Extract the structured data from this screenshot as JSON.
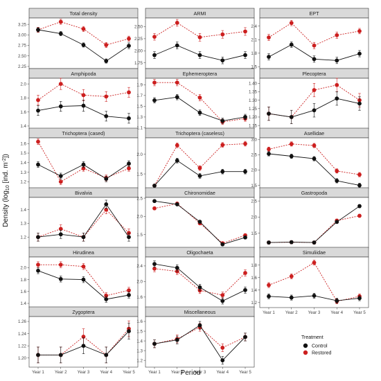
{
  "figure": {
    "xlabel": "Period",
    "ylabel": "Density (log10 [ind. m-2])",
    "legend_title": "Treatment"
  },
  "chart_data": {
    "type": "line",
    "categories": [
      "Year 1",
      "Year 2",
      "Year 3",
      "Year 4",
      "Year 5"
    ],
    "series_names": [
      "Control",
      "Restored"
    ],
    "colors": {
      "Control": "#111111",
      "Restored": "#cc1f1f"
    },
    "legend_position": "bottom-right",
    "panels": [
      {
        "title": "Total density",
        "ylim": [
          2.2,
          3.4
        ],
        "yticks": [
          "2.25",
          "2.50",
          "2.75",
          "3.00",
          "3.25"
        ],
        "control": [
          3.12,
          3.03,
          2.76,
          2.38,
          2.74
        ],
        "restored": [
          3.12,
          3.31,
          3.14,
          2.76,
          2.91
        ],
        "control_err": [
          0.05,
          0.05,
          0.05,
          0.05,
          0.07
        ],
        "restored_err": [
          0.06,
          0.06,
          0.06,
          0.06,
          0.06
        ]
      },
      {
        "title": "ARMI",
        "ylim": [
          1.63,
          2.68
        ],
        "yticks": [
          "1.75",
          "2.00",
          "2.25",
          "2.50"
        ],
        "control": [
          1.91,
          2.11,
          1.91,
          1.8,
          1.91
        ],
        "restored": [
          2.29,
          2.58,
          2.28,
          2.34,
          2.4
        ],
        "control_err": [
          0.07,
          0.07,
          0.07,
          0.07,
          0.07
        ],
        "restored_err": [
          0.07,
          0.07,
          0.08,
          0.08,
          0.08
        ]
      },
      {
        "title": "EPT",
        "ylim": [
          1.46,
          2.58
        ],
        "yticks": [
          "1.5",
          "1.8",
          "2.1",
          "2.4"
        ],
        "control": [
          1.72,
          1.99,
          1.67,
          1.64,
          1.79
        ],
        "restored": [
          2.15,
          2.47,
          1.97,
          2.2,
          2.29
        ],
        "control_err": [
          0.07,
          0.06,
          0.07,
          0.07,
          0.07
        ],
        "restored_err": [
          0.07,
          0.06,
          0.07,
          0.07,
          0.06
        ]
      },
      {
        "title": "Amphipoda",
        "ylim": [
          1.36,
          2.08
        ],
        "yticks": [
          "1.4",
          "1.6",
          "1.8",
          "2.0"
        ],
        "control": [
          1.62,
          1.68,
          1.69,
          1.54,
          1.51
        ],
        "restored": [
          1.77,
          2.0,
          1.84,
          1.82,
          1.88
        ],
        "control_err": [
          0.07,
          0.07,
          0.08,
          0.07,
          0.07
        ],
        "restored_err": [
          0.07,
          0.08,
          0.08,
          0.07,
          0.07
        ]
      },
      {
        "title": "Ephemeroptera",
        "ylim": [
          1.08,
          2.02
        ],
        "yticks": [
          "1.1",
          "1.3",
          "1.5",
          "1.7",
          "1.9"
        ],
        "control": [
          1.61,
          1.67,
          1.38,
          1.23,
          1.3
        ],
        "restored": [
          1.94,
          1.94,
          1.66,
          1.21,
          1.27
        ],
        "control_err": [
          0.05,
          0.05,
          0.05,
          0.05,
          0.05
        ],
        "restored_err": [
          0.06,
          0.06,
          0.06,
          0.05,
          0.05
        ]
      },
      {
        "title": "Plecoptera",
        "ylim": [
          1.13,
          1.43
        ],
        "yticks": [
          "1.15",
          "1.20",
          "1.25",
          "1.30",
          "1.35",
          "1.40"
        ],
        "control": [
          1.22,
          1.2,
          1.24,
          1.31,
          1.28
        ],
        "restored": [
          1.22,
          1.2,
          1.36,
          1.39,
          1.3
        ],
        "control_err": [
          0.04,
          0.04,
          0.04,
          0.04,
          0.04
        ],
        "restored_err": [
          0.04,
          0.04,
          0.04,
          0.04,
          0.04
        ]
      },
      {
        "title": "Trichoptera (cased)",
        "ylim": [
          1.13,
          1.66
        ],
        "yticks": [
          "1.2",
          "1.3",
          "1.4",
          "1.5",
          "1.6"
        ],
        "control": [
          1.38,
          1.26,
          1.38,
          1.23,
          1.39
        ],
        "restored": [
          1.62,
          1.2,
          1.34,
          1.24,
          1.34
        ],
        "control_err": [
          0.03,
          0.03,
          0.03,
          0.03,
          0.03
        ],
        "restored_err": [
          0.03,
          0.03,
          0.03,
          0.03,
          0.03
        ]
      },
      {
        "title": "Trichoptera (caseless)",
        "ylim": [
          1.13,
          2.42
        ],
        "yticks": [
          "1.5",
          "2.0"
        ],
        "control": [
          1.2,
          1.84,
          1.45,
          1.56,
          1.56
        ],
        "restored": [
          1.2,
          2.23,
          1.65,
          2.24,
          2.27
        ],
        "control_err": [
          0.03,
          0.06,
          0.06,
          0.06,
          0.06
        ],
        "restored_err": [
          0.03,
          0.06,
          0.06,
          0.06,
          0.06
        ]
      },
      {
        "title": "Asellidae",
        "ylim": [
          1.4,
          3.05
        ],
        "yticks": [
          "1.5",
          "2.0",
          "2.5",
          "3.0"
        ],
        "control": [
          2.53,
          2.45,
          2.37,
          1.65,
          1.5
        ],
        "restored": [
          2.68,
          2.85,
          2.8,
          1.97,
          1.85
        ],
        "control_err": [
          0.07,
          0.07,
          0.07,
          0.07,
          0.07
        ],
        "restored_err": [
          0.07,
          0.07,
          0.07,
          0.07,
          0.07
        ]
      },
      {
        "title": "Bivalvia",
        "ylim": [
          1.12,
          1.49
        ],
        "yticks": [
          "1.2",
          "1.3",
          "1.4"
        ],
        "control": [
          1.2,
          1.22,
          1.2,
          1.44,
          1.2
        ],
        "restored": [
          1.2,
          1.26,
          1.2,
          1.4,
          1.23
        ],
        "control_err": [
          0.03,
          0.03,
          0.03,
          0.03,
          0.03
        ],
        "restored_err": [
          0.03,
          0.03,
          0.03,
          0.03,
          0.03
        ]
      },
      {
        "title": "Chironomidae",
        "ylim": [
          1.13,
          2.52
        ],
        "yticks": [
          "1.5",
          "2.0",
          "2.5"
        ],
        "control": [
          2.42,
          2.33,
          1.85,
          1.23,
          1.42
        ],
        "restored": [
          2.22,
          2.35,
          1.81,
          1.26,
          1.48
        ],
        "control_err": [
          0.04,
          0.04,
          0.04,
          0.04,
          0.04
        ],
        "restored_err": [
          0.04,
          0.04,
          0.04,
          0.04,
          0.04
        ]
      },
      {
        "title": "Gastropoda",
        "ylim": [
          1.04,
          2.61
        ],
        "yticks": [
          "1.5",
          "2.0",
          "2.5"
        ],
        "control": [
          1.21,
          1.22,
          1.21,
          1.85,
          2.34
        ],
        "restored": [
          1.21,
          1.22,
          1.21,
          1.89,
          2.04
        ],
        "control_err": [
          0.05,
          0.05,
          0.05,
          0.05,
          0.05
        ],
        "restored_err": [
          0.05,
          0.05,
          0.05,
          0.05,
          0.05
        ]
      },
      {
        "title": "Hirudinea",
        "ylim": [
          1.33,
          2.18
        ],
        "yticks": [
          "1.4",
          "1.6",
          "1.8",
          "2.0"
        ],
        "control": [
          1.95,
          1.81,
          1.8,
          1.47,
          1.54
        ],
        "restored": [
          2.05,
          2.05,
          2.02,
          1.53,
          1.62
        ],
        "control_err": [
          0.05,
          0.05,
          0.05,
          0.05,
          0.05
        ],
        "restored_err": [
          0.05,
          0.05,
          0.05,
          0.05,
          0.05
        ]
      },
      {
        "title": "Oligochaeta",
        "ylim": [
          1.33,
          2.63
        ],
        "yticks": [
          "1.6",
          "2.0",
          "2.4"
        ],
        "control": [
          2.45,
          2.35,
          1.85,
          1.5,
          1.78
        ],
        "restored": [
          2.33,
          2.26,
          1.77,
          1.65,
          2.22
        ],
        "control_err": [
          0.08,
          0.08,
          0.08,
          0.08,
          0.08
        ],
        "restored_err": [
          0.08,
          0.08,
          0.08,
          0.08,
          0.08
        ]
      },
      {
        "title": "Simuliidae",
        "ylim": [
          1.12,
          1.93
        ],
        "yticks": [
          "1.2",
          "1.4",
          "1.6",
          "1.8"
        ],
        "control": [
          1.3,
          1.28,
          1.31,
          1.23,
          1.27
        ],
        "restored": [
          1.48,
          1.62,
          1.84,
          1.22,
          1.3
        ],
        "control_err": [
          0.04,
          0.04,
          0.04,
          0.04,
          0.04
        ],
        "restored_err": [
          0.04,
          0.04,
          0.04,
          0.04,
          0.04
        ]
      },
      {
        "title": "Zygoptera",
        "ylim": [
          1.185,
          1.268
        ],
        "yticks": [
          "1.20",
          "1.22",
          "1.24",
          "1.26"
        ],
        "control": [
          1.205,
          1.205,
          1.22,
          1.205,
          1.244
        ],
        "restored": [
          1.205,
          1.205,
          1.235,
          1.205,
          1.248
        ],
        "control_err": [
          0.013,
          0.013,
          0.013,
          0.013,
          0.013
        ],
        "restored_err": [
          0.013,
          0.013,
          0.013,
          0.013,
          0.013
        ]
      },
      {
        "title": "Miscellaneous",
        "ylim": [
          1.13,
          1.65
        ],
        "yticks": [
          "1.2",
          "1.3",
          "1.4",
          "1.5",
          "1.6"
        ],
        "control": [
          1.37,
          1.41,
          1.56,
          1.2,
          1.44
        ],
        "restored": [
          1.37,
          1.42,
          1.54,
          1.33,
          1.44
        ],
        "control_err": [
          0.04,
          0.04,
          0.04,
          0.04,
          0.04
        ],
        "restored_err": [
          0.04,
          0.04,
          0.04,
          0.04,
          0.04
        ]
      }
    ]
  }
}
